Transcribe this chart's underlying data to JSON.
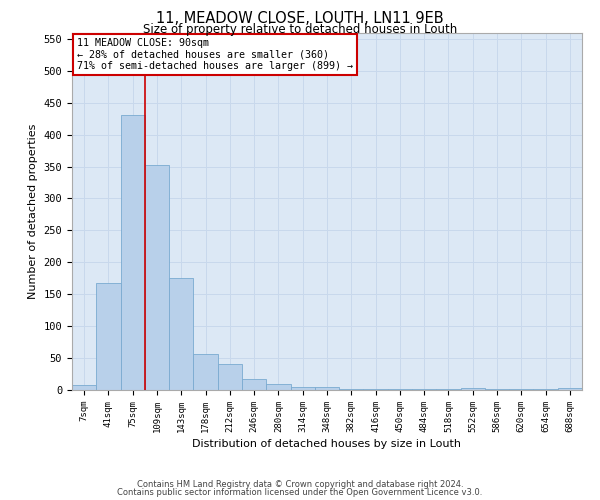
{
  "title": "11, MEADOW CLOSE, LOUTH, LN11 9EB",
  "subtitle": "Size of property relative to detached houses in Louth",
  "xlabel": "Distribution of detached houses by size in Louth",
  "ylabel": "Number of detached properties",
  "footnote1": "Contains HM Land Registry data © Crown copyright and database right 2024.",
  "footnote2": "Contains public sector information licensed under the Open Government Licence v3.0.",
  "bar_color": "#b8d0ea",
  "bar_edge_color": "#7aaad0",
  "vline_color": "#cc0000",
  "vline_x_idx": 2,
  "annotation_text": "11 MEADOW CLOSE: 90sqm\n← 28% of detached houses are smaller (360)\n71% of semi-detached houses are larger (899) →",
  "annotation_box_color": "#ffffff",
  "annotation_box_edge": "#cc0000",
  "categories": [
    "7sqm",
    "41sqm",
    "75sqm",
    "109sqm",
    "143sqm",
    "178sqm",
    "212sqm",
    "246sqm",
    "280sqm",
    "314sqm",
    "348sqm",
    "382sqm",
    "416sqm",
    "450sqm",
    "484sqm",
    "518sqm",
    "552sqm",
    "586sqm",
    "620sqm",
    "654sqm",
    "688sqm"
  ],
  "values": [
    8,
    168,
    430,
    352,
    175,
    57,
    40,
    18,
    10,
    5,
    5,
    1,
    1,
    1,
    1,
    1,
    3,
    1,
    1,
    1,
    3
  ],
  "ylim": [
    0,
    560
  ],
  "yticks": [
    0,
    50,
    100,
    150,
    200,
    250,
    300,
    350,
    400,
    450,
    500,
    550
  ],
  "grid_color": "#c8d8ec",
  "background_color": "#dce8f5"
}
